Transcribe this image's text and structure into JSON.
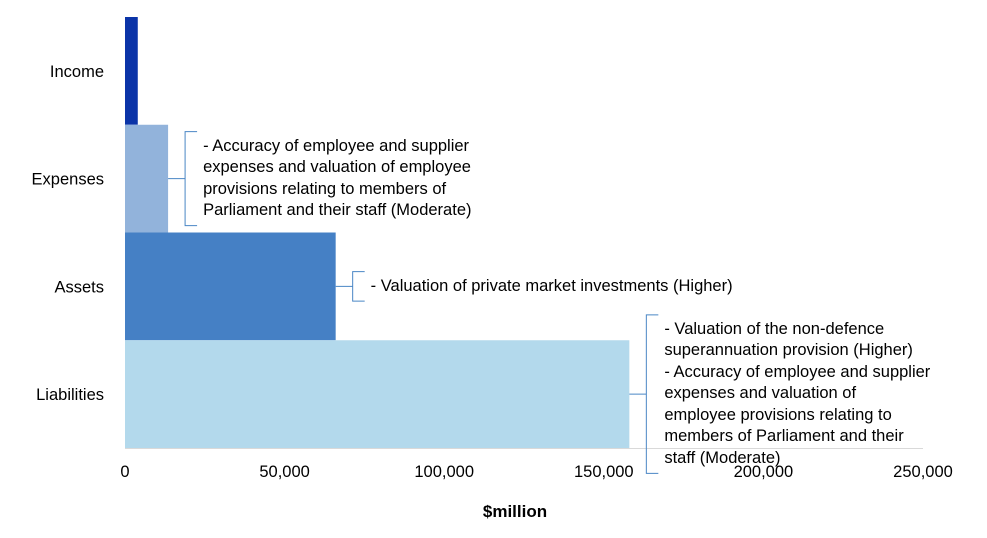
{
  "chart_data": {
    "type": "bar",
    "orientation": "horizontal",
    "categories": [
      "Income",
      "Expenses",
      "Assets",
      "Liabilities"
    ],
    "values": [
      4000,
      13500,
      66000,
      158000
    ],
    "colors": [
      "#0b34a8",
      "#92b3db",
      "#4580c5",
      "#b3d9ec"
    ],
    "xlabel": "$million",
    "ylabel": "",
    "xlim": [
      0,
      250000
    ],
    "xticks": [
      0,
      50000,
      100000,
      150000,
      200000,
      250000
    ],
    "xtick_labels": [
      "0",
      "50,000",
      "100,000",
      "150,000",
      "200,000",
      "250,000"
    ],
    "grid": false,
    "legend": "none",
    "annotations": [
      {
        "category": "Expenses",
        "lines": [
          "- Accuracy of employee and supplier",
          "expenses and valuation of employee",
          "provisions relating to members of",
          "Parliament and their staff (Moderate)"
        ]
      },
      {
        "category": "Assets",
        "lines": [
          "- Valuation of private market investments (Higher)"
        ]
      },
      {
        "category": "Liabilities",
        "lines": [
          "- Valuation of the non-defence",
          "superannuation provision (Higher)",
          "- Accuracy of employee and supplier",
          "expenses and valuation of",
          "employee provisions relating to",
          "members of Parliament and their",
          "staff (Moderate)"
        ]
      }
    ]
  }
}
